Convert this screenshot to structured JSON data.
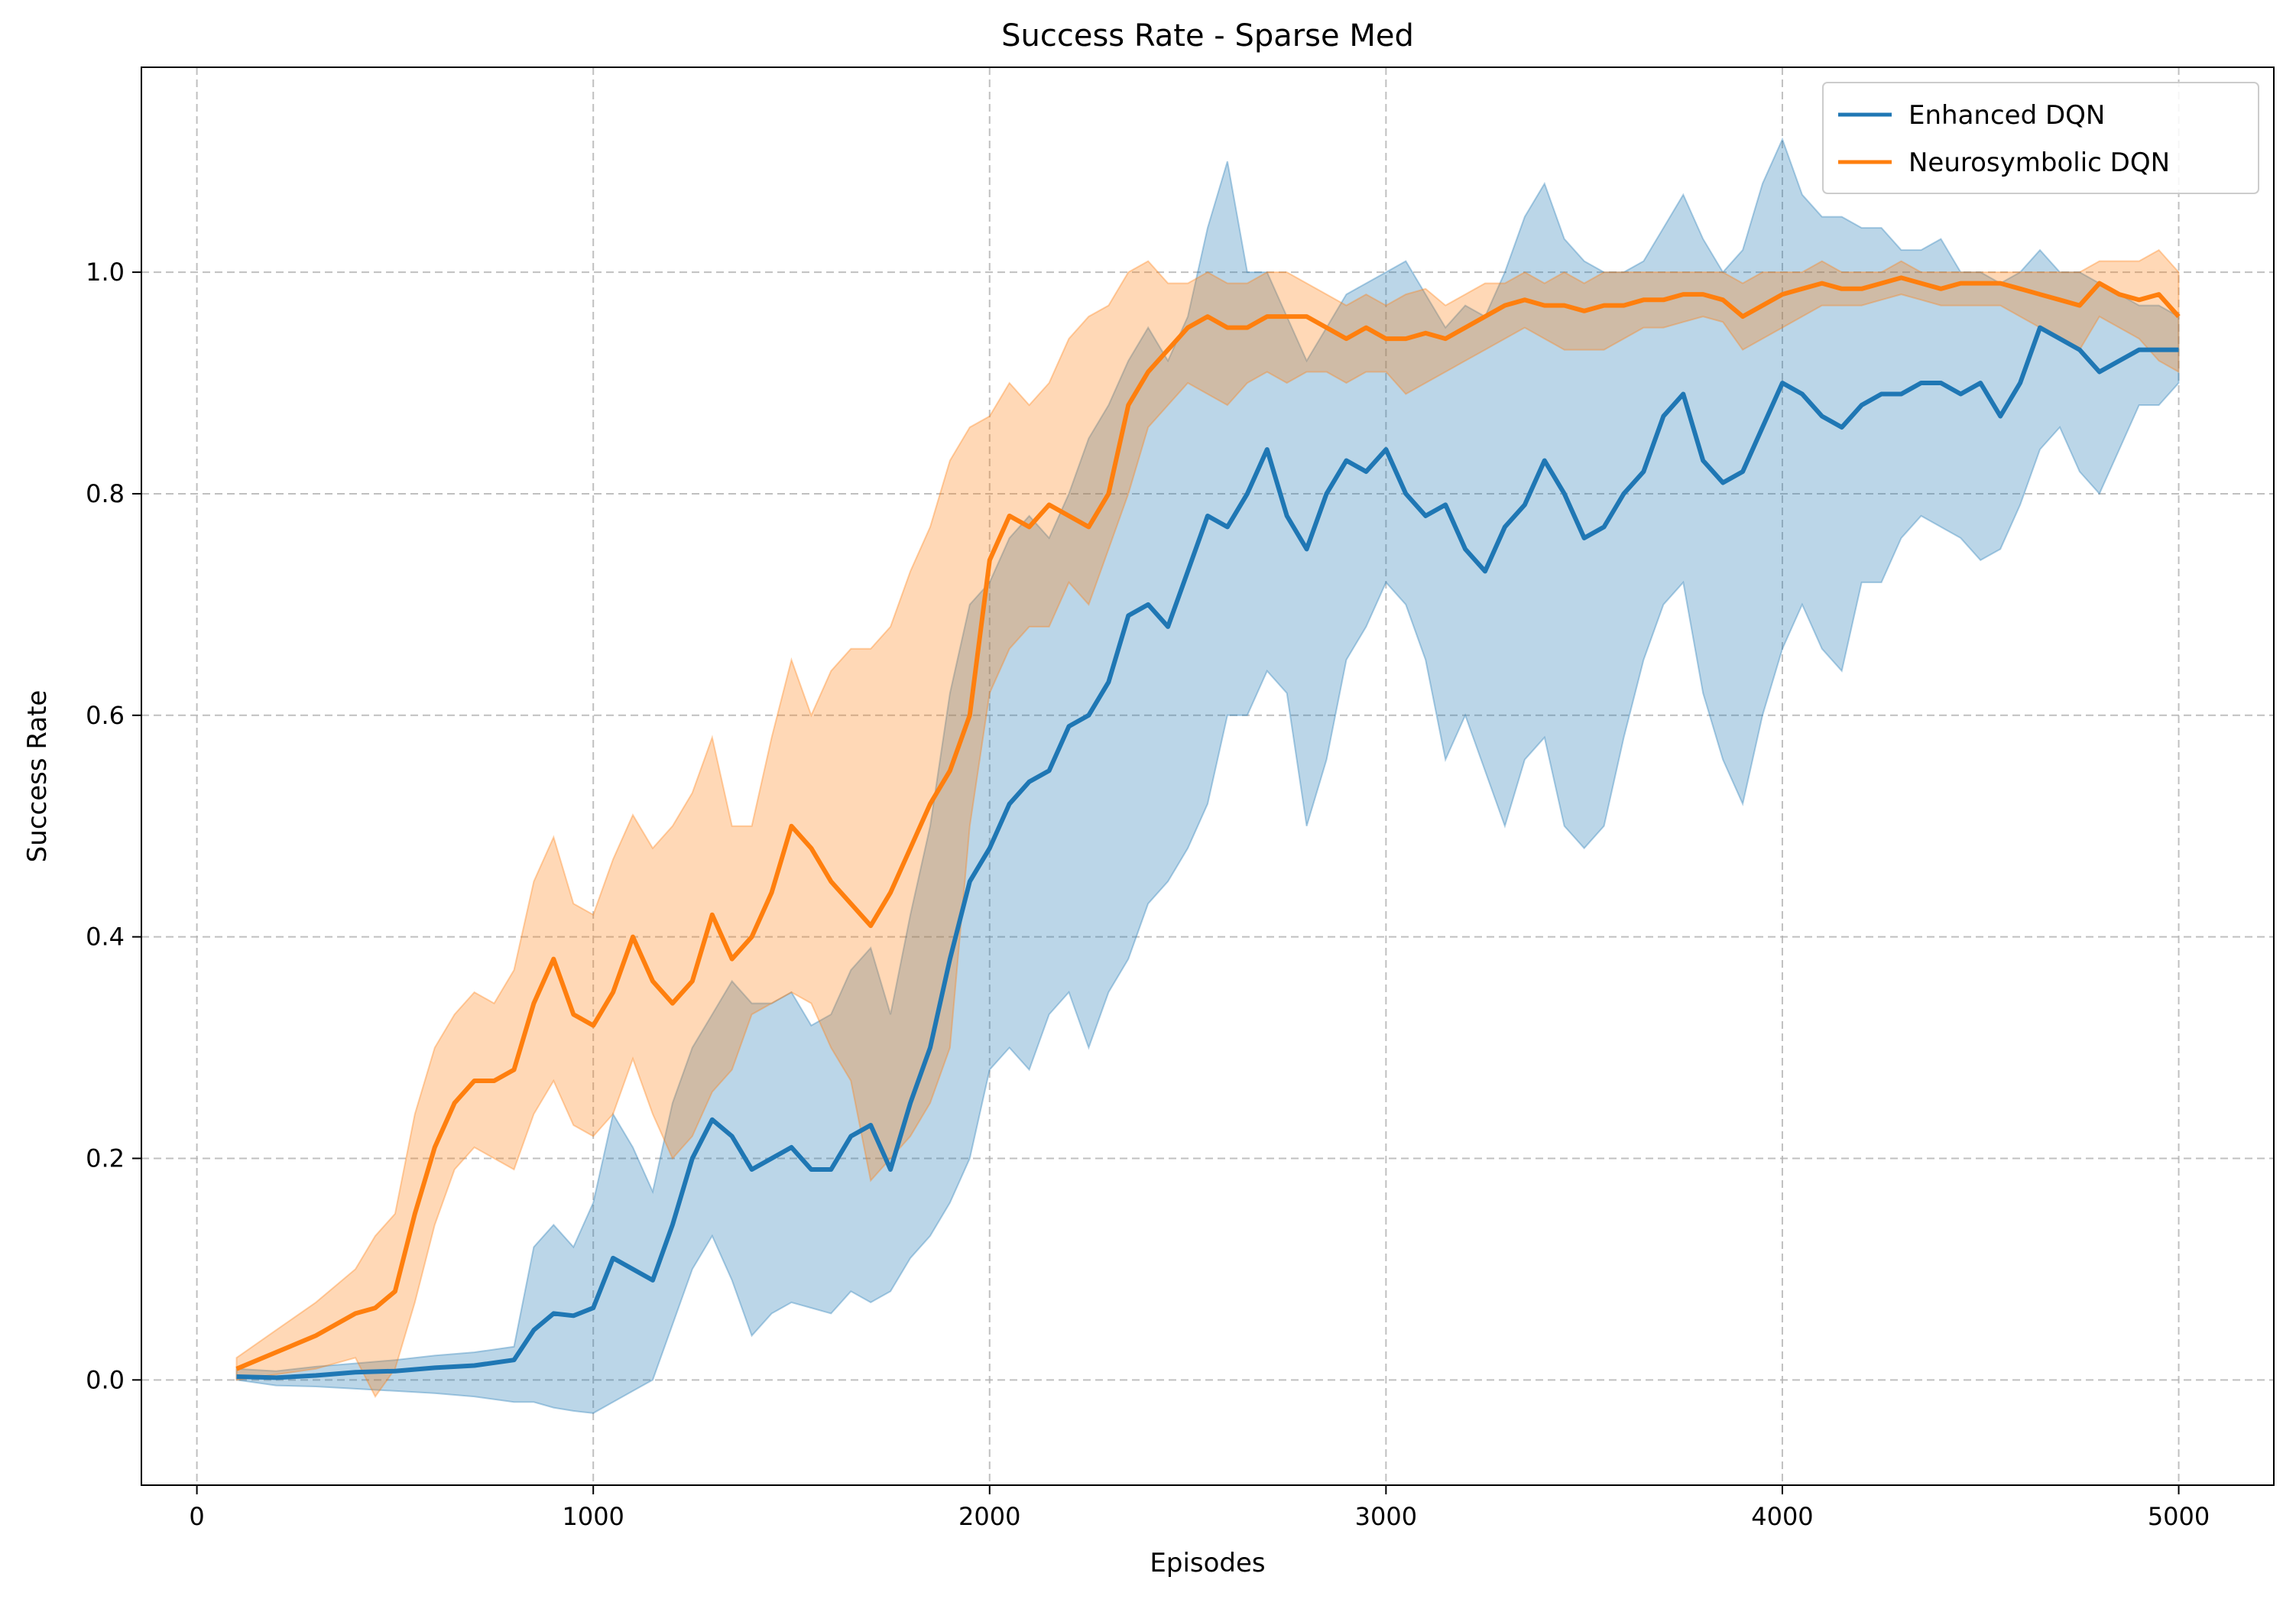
{
  "chart_data": {
    "type": "line",
    "title": "Success Rate - Sparse Med",
    "xlabel": "Episodes",
    "ylabel": "Success Rate",
    "xlim": [
      -140,
      5240
    ],
    "ylim": [
      -0.095,
      1.185
    ],
    "xticks": [
      0,
      1000,
      2000,
      3000,
      4000,
      5000
    ],
    "yticks": [
      0.0,
      0.2,
      0.4,
      0.6,
      0.8,
      1.0
    ],
    "grid": true,
    "legend_position": "top-right",
    "series": [
      {
        "name": "Enhanced DQN",
        "color": "#1f77b4",
        "x": [
          100,
          200,
          300,
          400,
          500,
          600,
          700,
          800,
          850,
          900,
          950,
          1000,
          1050,
          1100,
          1150,
          1200,
          1250,
          1300,
          1350,
          1400,
          1450,
          1500,
          1550,
          1600,
          1650,
          1700,
          1750,
          1800,
          1850,
          1900,
          1950,
          2000,
          2050,
          2100,
          2150,
          2200,
          2250,
          2300,
          2350,
          2400,
          2450,
          2500,
          2550,
          2600,
          2650,
          2700,
          2750,
          2800,
          2850,
          2900,
          2950,
          3000,
          3050,
          3100,
          3150,
          3200,
          3250,
          3300,
          3350,
          3400,
          3450,
          3500,
          3550,
          3600,
          3650,
          3700,
          3750,
          3800,
          3850,
          3900,
          3950,
          4000,
          4050,
          4100,
          4150,
          4200,
          4250,
          4300,
          4350,
          4400,
          4450,
          4500,
          4550,
          4600,
          4650,
          4700,
          4750,
          4800,
          4850,
          4900,
          4950,
          5000
        ],
        "mean": [
          0.003,
          0.002,
          0.004,
          0.007,
          0.008,
          0.011,
          0.013,
          0.018,
          0.045,
          0.06,
          0.058,
          0.065,
          0.11,
          0.1,
          0.09,
          0.14,
          0.2,
          0.235,
          0.22,
          0.19,
          0.2,
          0.21,
          0.19,
          0.19,
          0.22,
          0.23,
          0.19,
          0.25,
          0.3,
          0.38,
          0.45,
          0.48,
          0.52,
          0.54,
          0.55,
          0.59,
          0.6,
          0.63,
          0.69,
          0.7,
          0.68,
          0.73,
          0.78,
          0.77,
          0.8,
          0.84,
          0.78,
          0.75,
          0.8,
          0.83,
          0.82,
          0.84,
          0.8,
          0.78,
          0.79,
          0.75,
          0.73,
          0.77,
          0.79,
          0.83,
          0.8,
          0.76,
          0.77,
          0.8,
          0.82,
          0.87,
          0.89,
          0.83,
          0.81,
          0.82,
          0.86,
          0.9,
          0.89,
          0.87,
          0.86,
          0.88,
          0.89,
          0.89,
          0.9,
          0.9,
          0.89,
          0.9,
          0.87,
          0.9,
          0.95,
          0.94,
          0.93,
          0.91,
          0.92,
          0.93,
          0.93,
          0.93
        ],
        "lower": [
          0.0,
          -0.005,
          -0.006,
          -0.008,
          -0.01,
          -0.012,
          -0.015,
          -0.02,
          -0.02,
          -0.025,
          -0.028,
          -0.03,
          -0.02,
          -0.01,
          0.0,
          0.05,
          0.1,
          0.13,
          0.09,
          0.04,
          0.06,
          0.07,
          0.065,
          0.06,
          0.08,
          0.07,
          0.08,
          0.11,
          0.13,
          0.16,
          0.2,
          0.28,
          0.3,
          0.28,
          0.33,
          0.35,
          0.3,
          0.35,
          0.38,
          0.43,
          0.45,
          0.48,
          0.52,
          0.6,
          0.6,
          0.64,
          0.62,
          0.5,
          0.56,
          0.65,
          0.68,
          0.72,
          0.7,
          0.65,
          0.56,
          0.6,
          0.55,
          0.5,
          0.56,
          0.58,
          0.5,
          0.48,
          0.5,
          0.58,
          0.65,
          0.7,
          0.72,
          0.62,
          0.56,
          0.52,
          0.6,
          0.66,
          0.7,
          0.66,
          0.64,
          0.72,
          0.72,
          0.76,
          0.78,
          0.77,
          0.76,
          0.74,
          0.75,
          0.79,
          0.84,
          0.86,
          0.82,
          0.8,
          0.84,
          0.88,
          0.88,
          0.9
        ],
        "upper": [
          0.01,
          0.008,
          0.012,
          0.015,
          0.018,
          0.022,
          0.025,
          0.03,
          0.12,
          0.14,
          0.12,
          0.16,
          0.24,
          0.21,
          0.17,
          0.25,
          0.3,
          0.33,
          0.36,
          0.34,
          0.34,
          0.35,
          0.32,
          0.33,
          0.37,
          0.39,
          0.33,
          0.42,
          0.5,
          0.62,
          0.7,
          0.72,
          0.76,
          0.78,
          0.76,
          0.8,
          0.85,
          0.88,
          0.92,
          0.95,
          0.92,
          0.96,
          1.04,
          1.1,
          1.0,
          1.0,
          0.96,
          0.92,
          0.95,
          0.98,
          0.99,
          1.0,
          1.01,
          0.98,
          0.95,
          0.97,
          0.96,
          1.0,
          1.05,
          1.08,
          1.03,
          1.01,
          1.0,
          1.0,
          1.01,
          1.04,
          1.07,
          1.03,
          1.0,
          1.02,
          1.08,
          1.12,
          1.07,
          1.05,
          1.05,
          1.04,
          1.04,
          1.02,
          1.02,
          1.03,
          1.0,
          1.0,
          0.99,
          1.0,
          1.02,
          1.0,
          1.0,
          0.99,
          0.98,
          0.97,
          0.97,
          0.96
        ]
      },
      {
        "name": "Neurosymbolic DQN",
        "color": "#ff7f0e",
        "x": [
          100,
          200,
          300,
          400,
          450,
          500,
          550,
          600,
          650,
          700,
          750,
          800,
          850,
          900,
          950,
          1000,
          1050,
          1100,
          1150,
          1200,
          1250,
          1300,
          1350,
          1400,
          1450,
          1500,
          1550,
          1600,
          1650,
          1700,
          1750,
          1800,
          1850,
          1900,
          1950,
          2000,
          2050,
          2100,
          2150,
          2200,
          2250,
          2300,
          2350,
          2400,
          2450,
          2500,
          2550,
          2600,
          2650,
          2700,
          2750,
          2800,
          2850,
          2900,
          2950,
          3000,
          3050,
          3100,
          3150,
          3200,
          3250,
          3300,
          3350,
          3400,
          3450,
          3500,
          3550,
          3600,
          3650,
          3700,
          3750,
          3800,
          3850,
          3900,
          3950,
          4000,
          4050,
          4100,
          4150,
          4200,
          4250,
          4300,
          4350,
          4400,
          4450,
          4500,
          4550,
          4600,
          4650,
          4700,
          4750,
          4800,
          4850,
          4900,
          4950,
          5000
        ],
        "mean": [
          0.01,
          0.025,
          0.04,
          0.06,
          0.065,
          0.08,
          0.15,
          0.21,
          0.25,
          0.27,
          0.27,
          0.28,
          0.34,
          0.38,
          0.33,
          0.32,
          0.35,
          0.4,
          0.36,
          0.34,
          0.36,
          0.42,
          0.38,
          0.4,
          0.44,
          0.5,
          0.48,
          0.45,
          0.43,
          0.41,
          0.44,
          0.48,
          0.52,
          0.55,
          0.6,
          0.74,
          0.78,
          0.77,
          0.79,
          0.78,
          0.77,
          0.8,
          0.88,
          0.91,
          0.93,
          0.95,
          0.96,
          0.95,
          0.95,
          0.96,
          0.96,
          0.96,
          0.95,
          0.94,
          0.95,
          0.94,
          0.94,
          0.945,
          0.94,
          0.95,
          0.96,
          0.97,
          0.975,
          0.97,
          0.97,
          0.965,
          0.97,
          0.97,
          0.975,
          0.975,
          0.98,
          0.98,
          0.975,
          0.96,
          0.97,
          0.98,
          0.985,
          0.99,
          0.985,
          0.985,
          0.99,
          0.995,
          0.99,
          0.985,
          0.99,
          0.99,
          0.99,
          0.985,
          0.98,
          0.975,
          0.97,
          0.99,
          0.98,
          0.975,
          0.98,
          0.96
        ],
        "lower": [
          0.0,
          0.005,
          0.01,
          0.02,
          -0.015,
          0.01,
          0.07,
          0.14,
          0.19,
          0.21,
          0.2,
          0.19,
          0.24,
          0.27,
          0.23,
          0.22,
          0.24,
          0.29,
          0.24,
          0.2,
          0.22,
          0.26,
          0.28,
          0.33,
          0.34,
          0.35,
          0.34,
          0.3,
          0.27,
          0.18,
          0.2,
          0.22,
          0.25,
          0.3,
          0.5,
          0.62,
          0.66,
          0.68,
          0.68,
          0.72,
          0.7,
          0.75,
          0.8,
          0.86,
          0.88,
          0.9,
          0.89,
          0.88,
          0.9,
          0.91,
          0.9,
          0.91,
          0.91,
          0.9,
          0.91,
          0.91,
          0.89,
          0.9,
          0.91,
          0.92,
          0.93,
          0.94,
          0.95,
          0.94,
          0.93,
          0.93,
          0.93,
          0.94,
          0.95,
          0.95,
          0.955,
          0.96,
          0.955,
          0.93,
          0.94,
          0.95,
          0.96,
          0.97,
          0.97,
          0.97,
          0.975,
          0.98,
          0.975,
          0.97,
          0.97,
          0.97,
          0.97,
          0.96,
          0.95,
          0.94,
          0.93,
          0.96,
          0.95,
          0.94,
          0.92,
          0.91
        ],
        "upper": [
          0.02,
          0.045,
          0.07,
          0.1,
          0.13,
          0.15,
          0.24,
          0.3,
          0.33,
          0.35,
          0.34,
          0.37,
          0.45,
          0.49,
          0.43,
          0.42,
          0.47,
          0.51,
          0.48,
          0.5,
          0.53,
          0.58,
          0.5,
          0.5,
          0.58,
          0.65,
          0.6,
          0.64,
          0.66,
          0.66,
          0.68,
          0.73,
          0.77,
          0.83,
          0.86,
          0.87,
          0.9,
          0.88,
          0.9,
          0.94,
          0.96,
          0.97,
          1.0,
          1.01,
          0.99,
          0.99,
          1.0,
          0.99,
          0.99,
          1.0,
          1.0,
          0.99,
          0.98,
          0.97,
          0.98,
          0.97,
          0.98,
          0.985,
          0.97,
          0.98,
          0.99,
          0.99,
          1.0,
          0.99,
          1.0,
          0.99,
          1.0,
          1.0,
          1.0,
          1.0,
          1.0,
          1.0,
          1.0,
          0.99,
          1.0,
          1.0,
          1.0,
          1.01,
          1.0,
          1.0,
          1.0,
          1.01,
          1.0,
          1.0,
          1.0,
          1.0,
          1.0,
          1.0,
          1.0,
          1.0,
          1.0,
          1.01,
          1.01,
          1.01,
          1.02,
          1.0
        ]
      }
    ]
  }
}
